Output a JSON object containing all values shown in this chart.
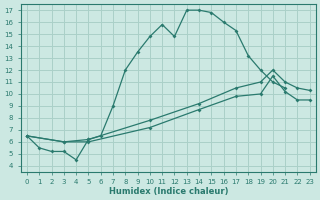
{
  "xlabel": "Humidex (Indice chaleur)",
  "bg_color": "#cce8e2",
  "grid_color": "#aad0c8",
  "line_color": "#2a7a6e",
  "xlim": [
    -0.5,
    23.5
  ],
  "ylim": [
    3.5,
    17.5
  ],
  "xticks": [
    0,
    1,
    2,
    3,
    4,
    5,
    6,
    7,
    8,
    9,
    10,
    11,
    12,
    13,
    14,
    15,
    16,
    17,
    18,
    19,
    20,
    21,
    22,
    23
  ],
  "yticks": [
    4,
    5,
    6,
    7,
    8,
    9,
    10,
    11,
    12,
    13,
    14,
    15,
    16,
    17
  ],
  "curve1_x": [
    0,
    1,
    2,
    3,
    4,
    5,
    6,
    7,
    8,
    9,
    10,
    11,
    12,
    13,
    14,
    15,
    16,
    17,
    18,
    19,
    20,
    21
  ],
  "curve1_y": [
    6.5,
    5.5,
    5.2,
    5.2,
    4.5,
    6.2,
    6.5,
    9.0,
    12.0,
    13.5,
    14.8,
    15.8,
    14.8,
    17.0,
    17.0,
    16.8,
    16.0,
    15.3,
    13.2,
    12.0,
    11.0,
    10.5
  ],
  "curve2_x": [
    0,
    3,
    5,
    10,
    14,
    17,
    19,
    20,
    21,
    22,
    23
  ],
  "curve2_y": [
    6.5,
    6.0,
    6.2,
    7.8,
    9.2,
    10.5,
    11.0,
    12.0,
    11.0,
    10.5,
    10.3
  ],
  "curve3_x": [
    0,
    3,
    5,
    10,
    14,
    17,
    19,
    20,
    21,
    22,
    23
  ],
  "curve3_y": [
    6.5,
    6.0,
    6.0,
    7.2,
    8.7,
    9.8,
    10.0,
    11.5,
    10.2,
    9.5,
    9.5
  ]
}
